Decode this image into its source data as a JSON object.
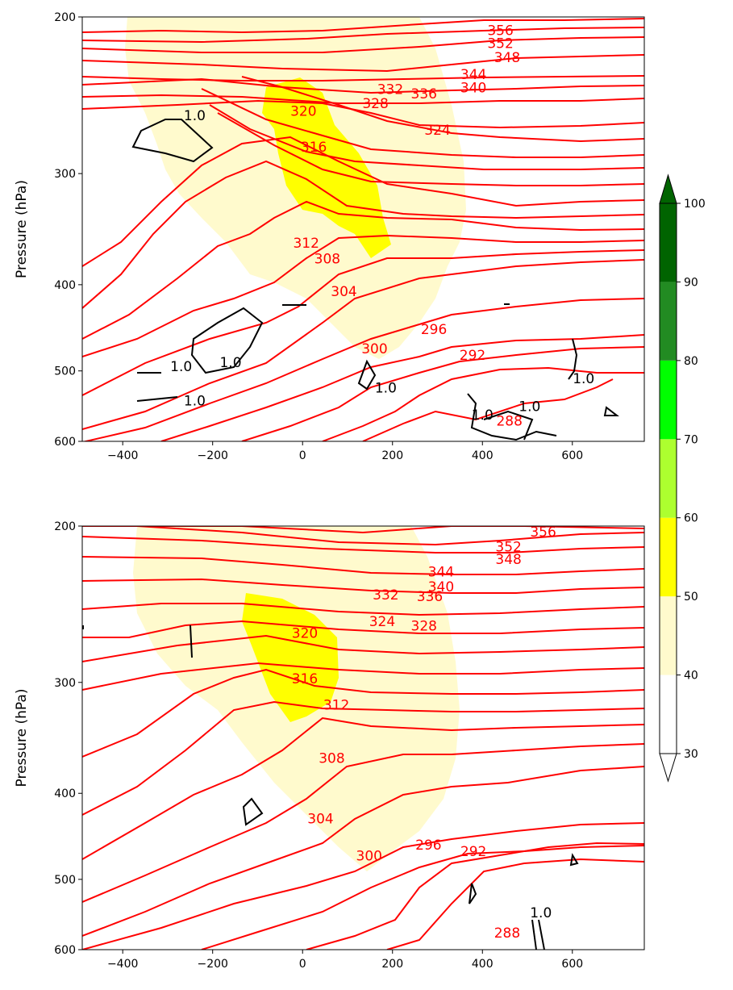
{
  "chart_data": [
    {
      "type": "contour",
      "ylabel": "Pressure (hPa)",
      "xlim": [
        -490,
        760
      ],
      "ylim": [
        600,
        200
      ],
      "y_scale": "log",
      "x_ticks": [
        "-400",
        "-200",
        "0",
        "200",
        "400",
        "600"
      ],
      "y_ticks": [
        "200",
        "300",
        "400",
        "500",
        "600"
      ],
      "filled_levels": [
        {
          "range": "40-50",
          "color": "#fffacd"
        },
        {
          "range": "50-60",
          "color": "#ffff00"
        }
      ],
      "theta_labels": [
        {
          "text": "356",
          "x": 440,
          "y": 207
        },
        {
          "text": "352",
          "x": 440,
          "y": 214
        },
        {
          "text": "348",
          "x": 455,
          "y": 222
        },
        {
          "text": "344",
          "x": 380,
          "y": 232
        },
        {
          "text": "340",
          "x": 380,
          "y": 240
        },
        {
          "text": "336",
          "x": 270,
          "y": 244
        },
        {
          "text": "332",
          "x": 195,
          "y": 241
        },
        {
          "text": "328",
          "x": 162,
          "y": 250
        },
        {
          "text": "324",
          "x": 300,
          "y": 268
        },
        {
          "text": "320",
          "x": 2,
          "y": 255
        },
        {
          "text": "316",
          "x": 25,
          "y": 280
        },
        {
          "text": "312",
          "x": 8,
          "y": 359
        },
        {
          "text": "308",
          "x": 55,
          "y": 374
        },
        {
          "text": "304",
          "x": 92,
          "y": 407
        },
        {
          "text": "300",
          "x": 160,
          "y": 472
        },
        {
          "text": "296",
          "x": 292,
          "y": 449
        },
        {
          "text": "292",
          "x": 378,
          "y": 480
        },
        {
          "text": "288",
          "x": 460,
          "y": 569
        }
      ],
      "w_labels": [
        {
          "text": "1.0",
          "x": -240,
          "y": 258
        },
        {
          "text": "1.0",
          "x": -270,
          "y": 494
        },
        {
          "text": "1.0",
          "x": -160,
          "y": 489
        },
        {
          "text": "1.0",
          "x": -240,
          "y": 540
        },
        {
          "text": "1.0",
          "x": 185,
          "y": 522
        },
        {
          "text": "1.0",
          "x": 400,
          "y": 560
        },
        {
          "text": "1.0",
          "x": 505,
          "y": 548
        },
        {
          "text": "1.0",
          "x": 625,
          "y": 510
        }
      ]
    },
    {
      "type": "contour",
      "ylabel": "Pressure (hPa)",
      "xlim": [
        -490,
        760
      ],
      "ylim": [
        600,
        200
      ],
      "y_scale": "log",
      "x_ticks": [
        "-400",
        "-200",
        "0",
        "200",
        "400",
        "600"
      ],
      "y_ticks": [
        "200",
        "300",
        "400",
        "500",
        "600"
      ],
      "filled_levels": [
        {
          "range": "40-50",
          "color": "#fffacd"
        },
        {
          "range": "50-60",
          "color": "#ffff00"
        }
      ],
      "theta_labels": [
        {
          "text": "356",
          "x": 535,
          "y": 203
        },
        {
          "text": "352",
          "x": 458,
          "y": 211
        },
        {
          "text": "348",
          "x": 458,
          "y": 218
        },
        {
          "text": "344",
          "x": 308,
          "y": 225
        },
        {
          "text": "340",
          "x": 308,
          "y": 234
        },
        {
          "text": "336",
          "x": 283,
          "y": 240
        },
        {
          "text": "332",
          "x": 185,
          "y": 239
        },
        {
          "text": "328",
          "x": 270,
          "y": 259
        },
        {
          "text": "324",
          "x": 177,
          "y": 256
        },
        {
          "text": "320",
          "x": 5,
          "y": 264
        },
        {
          "text": "316",
          "x": 5,
          "y": 297
        },
        {
          "text": "312",
          "x": 75,
          "y": 318
        },
        {
          "text": "308",
          "x": 65,
          "y": 365
        },
        {
          "text": "304",
          "x": 40,
          "y": 427
        },
        {
          "text": "300",
          "x": 148,
          "y": 470
        },
        {
          "text": "296",
          "x": 280,
          "y": 457
        },
        {
          "text": "292",
          "x": 380,
          "y": 465
        },
        {
          "text": "288",
          "x": 455,
          "y": 574
        }
      ],
      "w_labels": [
        {
          "text": "1.0",
          "x": 530,
          "y": 545
        }
      ]
    }
  ],
  "colorbar": {
    "ticks": [
      "30",
      "40",
      "50",
      "60",
      "70",
      "80",
      "90",
      "100"
    ],
    "colors": [
      "#ffffff",
      "#fffacd",
      "#ffff00",
      "#adff2f",
      "#00ff00",
      "#228b22",
      "#006400"
    ],
    "extend": "both"
  }
}
